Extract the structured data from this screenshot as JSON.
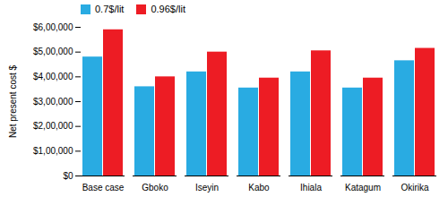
{
  "chart_data": {
    "type": "bar",
    "categories": [
      "Base case",
      "Gboko",
      "Iseyin",
      "Kabo",
      "Ihiala",
      "Katagum",
      "Okirika"
    ],
    "series": [
      {
        "name": "0.7$/lit",
        "color": "#29ABE2",
        "values": [
          480000,
          360000,
          420000,
          355000,
          420000,
          355000,
          465000
        ]
      },
      {
        "name": "0.96$/lit",
        "color": "#ED1C24",
        "values": [
          590000,
          400000,
          500000,
          395000,
          505000,
          395000,
          515000
        ]
      }
    ],
    "ylabel": "Net present cost $",
    "ylim": [
      0,
      600000
    ],
    "yticks": [
      {
        "value": 0,
        "label": "$0"
      },
      {
        "value": 100000,
        "label": "$1,00,000"
      },
      {
        "value": 200000,
        "label": "$2,00,000"
      },
      {
        "value": 300000,
        "label": "$3,00,000"
      },
      {
        "value": 400000,
        "label": "$4,00,000"
      },
      {
        "value": 500000,
        "label": "$5,00,000"
      },
      {
        "value": 600000,
        "label": "$6,00,000"
      }
    ],
    "legend": "upper left",
    "grid": false
  }
}
